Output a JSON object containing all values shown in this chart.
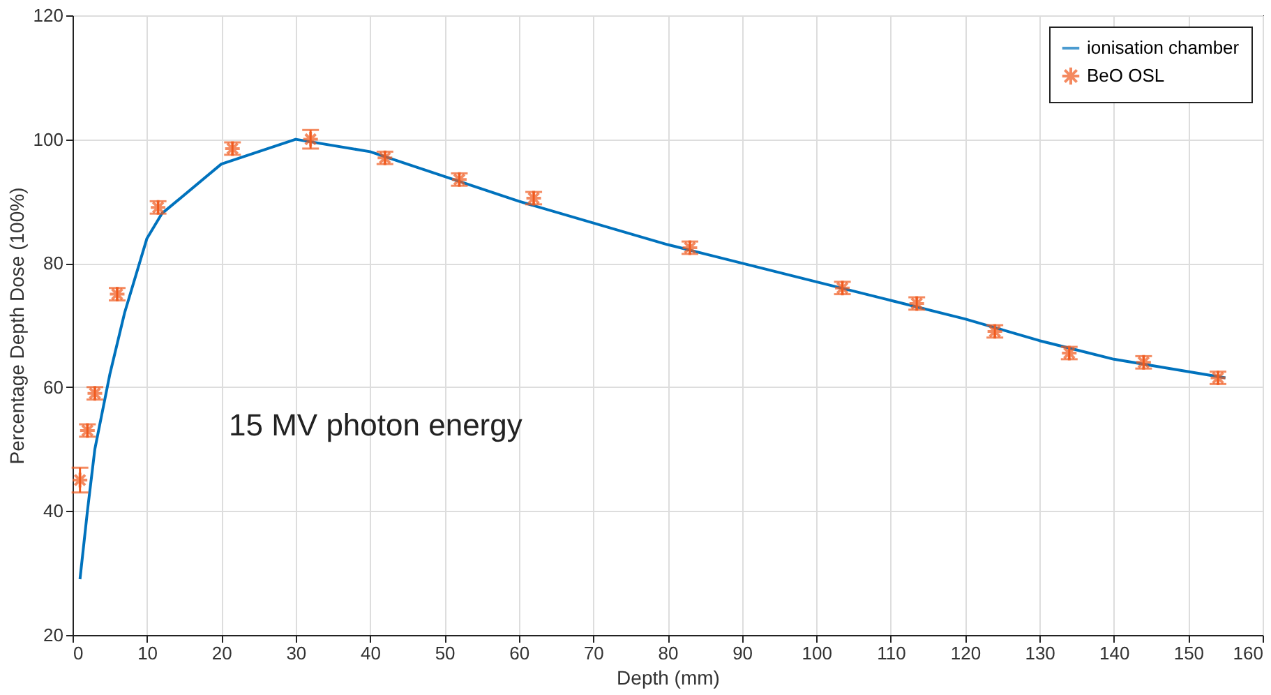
{
  "chart_data": {
    "type": "line",
    "xlabel": "Depth (mm)",
    "ylabel": "Percentage Depth Dose (100%)",
    "xlim": [
      0,
      160
    ],
    "xticks": [
      0,
      10,
      20,
      30,
      40,
      50,
      60,
      70,
      80,
      90,
      100,
      110,
      120,
      130,
      140,
      150,
      160
    ],
    "ylim": [
      20,
      120
    ],
    "yticks": [
      20,
      40,
      60,
      80,
      100,
      120
    ],
    "grid": true,
    "legend": "top right",
    "annotations": [
      "15 MV photon energy"
    ],
    "series": [
      {
        "name": "ionisation chamber",
        "color": "#0072bd",
        "marker": "none",
        "line_style": "solid",
        "x": [
          1,
          2,
          3,
          5,
          7,
          10,
          12,
          20,
          30,
          40,
          50,
          60,
          80,
          100,
          110,
          120,
          130,
          140,
          155
        ],
        "values": [
          29,
          40,
          50,
          62,
          72,
          84,
          88,
          96,
          100,
          98,
          94,
          90,
          83,
          77,
          74,
          71,
          67.5,
          64.5,
          61.5
        ]
      },
      {
        "name": "BeO OSL",
        "type": "scatter",
        "color": "#f05a1e",
        "marker": "cross",
        "x": [
          1,
          2,
          3,
          6,
          11.5,
          21.5,
          32,
          42,
          52,
          62,
          83,
          103.5,
          113.5,
          124,
          134,
          144,
          154
        ],
        "values": [
          45,
          53,
          59,
          75,
          89,
          98.5,
          100,
          97,
          93.5,
          90.5,
          82.5,
          76,
          73.5,
          69,
          65.5,
          64,
          61.5
        ],
        "errors": [
          2,
          1,
          1,
          1,
          1,
          1,
          1.5,
          1,
          1,
          1,
          1,
          1,
          1,
          1,
          1,
          1,
          1
        ]
      }
    ]
  }
}
